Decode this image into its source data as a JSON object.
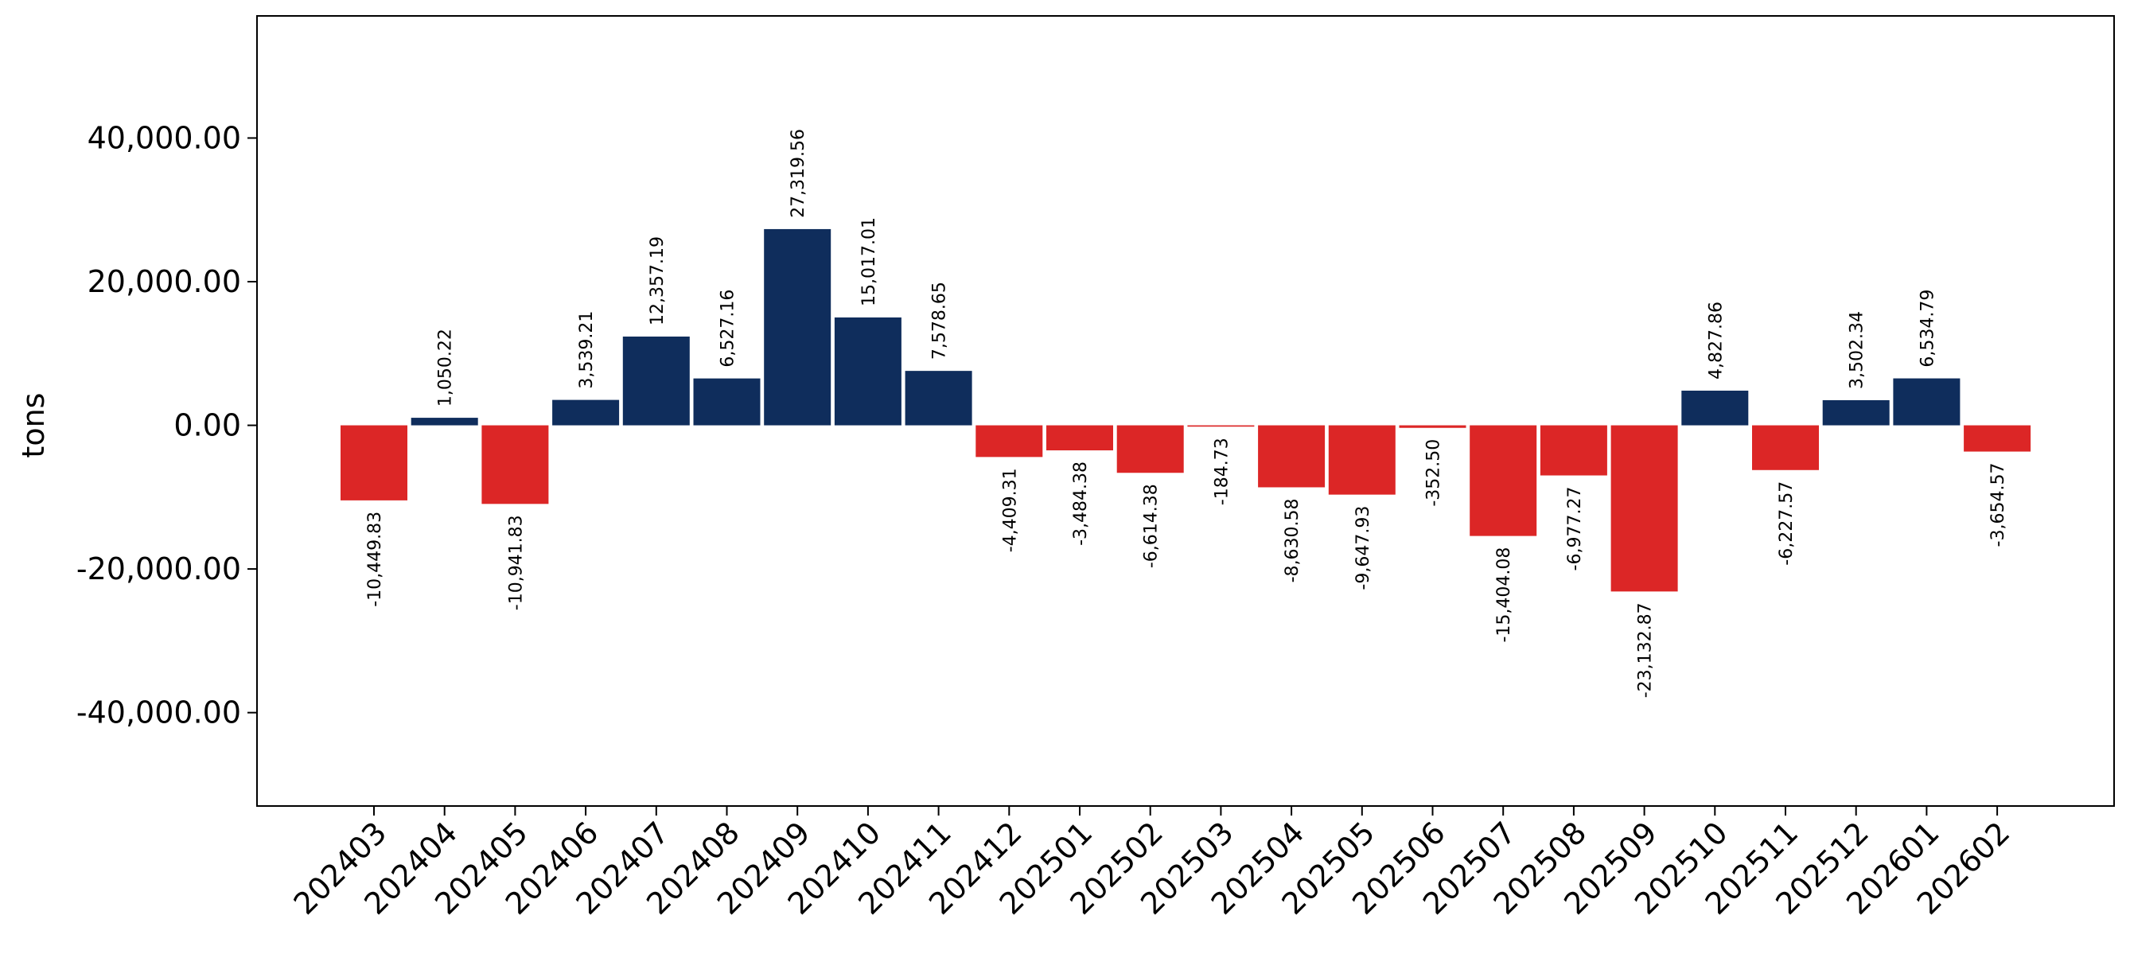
{
  "chart_data": {
    "type": "bar",
    "title": "",
    "xlabel": "",
    "ylabel": "tons",
    "ylim": [
      -53000,
      57000
    ],
    "y_ticks": [
      -40000,
      -20000,
      0,
      20000,
      40000
    ],
    "y_tick_labels": [
      "-40,000.00",
      "-20,000.00",
      "0.00",
      "20,000.00",
      "40,000.00"
    ],
    "grid": false,
    "legend": "none",
    "colors": {
      "positive": "#0f2d5c",
      "negative": "#dc2626"
    },
    "categories": [
      "202403",
      "202404",
      "202405",
      "202406",
      "202407",
      "202408",
      "202409",
      "202410",
      "202411",
      "202412",
      "202501",
      "202502",
      "202503",
      "202504",
      "202505",
      "202506",
      "202507",
      "202508",
      "202509",
      "202510",
      "202511",
      "202512",
      "202601",
      "202602"
    ],
    "values": [
      -10449.83,
      1050.22,
      -10941.83,
      3539.21,
      12357.19,
      6527.16,
      27319.56,
      15017.01,
      7578.65,
      -4409.31,
      -3484.38,
      -6614.38,
      -184.73,
      -8630.58,
      -9647.93,
      -352.5,
      -15404.08,
      -6977.27,
      -23132.87,
      4827.86,
      -6227.57,
      3502.34,
      6534.79,
      -3654.57
    ],
    "value_labels": [
      "-10,449.83",
      "1,050.22",
      "-10,941.83",
      "3,539.21",
      "12,357.19",
      "6,527.16",
      "27,319.56",
      "15,017.01",
      "7,578.65",
      "-4,409.31",
      "-3,484.38",
      "-6,614.38",
      "-184.73",
      "-8,630.58",
      "-9,647.93",
      "-352.50",
      "-15,404.08",
      "-6,977.27",
      "-23,132.87",
      "4,827.86",
      "-6,227.57",
      "3,502.34",
      "6,534.79",
      "-3,654.57"
    ]
  }
}
